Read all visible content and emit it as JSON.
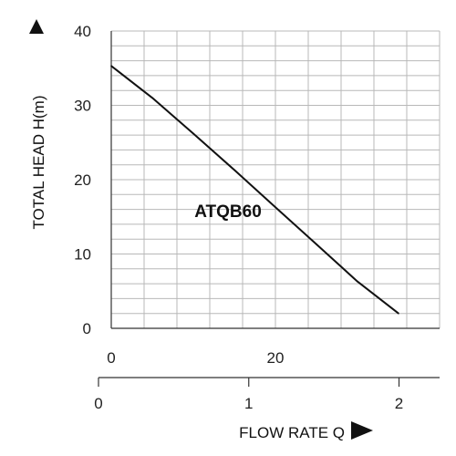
{
  "chart_data": {
    "type": "line",
    "title": "",
    "xlabel": "FLOW RATE Q",
    "ylabel": "TOTAL HEAD H(m)",
    "xlim": [
      0,
      40
    ],
    "ylim": [
      0,
      40
    ],
    "x_ticks": [
      0,
      20
    ],
    "y_ticks": [
      0,
      10,
      20,
      30,
      40
    ],
    "secondary_x_axis": {
      "xlim": [
        0,
        2.27
      ],
      "ticks": [
        0,
        1,
        2
      ]
    },
    "grid": true,
    "colors": {
      "line": "#111111",
      "grid": "#b8b8b8",
      "text": "#222222"
    },
    "series": [
      {
        "name": "ATQB60",
        "x": [
          0,
          5,
          10,
          15,
          20,
          25,
          30,
          35
        ],
        "y": [
          35.3,
          31.0,
          26.2,
          21.3,
          16.3,
          11.3,
          6.3,
          2.0
        ]
      }
    ]
  }
}
